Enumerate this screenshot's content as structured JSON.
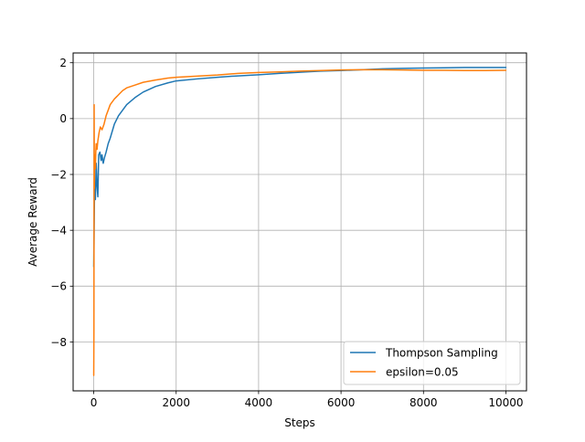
{
  "chart_data": {
    "type": "line",
    "title": "",
    "xlabel": "Steps",
    "ylabel": "Average Reward",
    "xlim": [
      -500,
      10500
    ],
    "ylim": [
      -9.75,
      2.35
    ],
    "xticks": [
      0,
      2000,
      4000,
      6000,
      8000,
      10000
    ],
    "xtick_labels": [
      "0",
      "2000",
      "4000",
      "6000",
      "8000",
      "10000"
    ],
    "yticks": [
      -8,
      -6,
      -4,
      -2,
      0,
      2
    ],
    "ytick_labels": [
      "−8",
      "−6",
      "−4",
      "−2",
      "0",
      "2"
    ],
    "grid": true,
    "legend_position": "bottom-right",
    "series": [
      {
        "name": "Thompson Sampling",
        "color": "#1f77b4",
        "x": [
          0,
          20,
          40,
          60,
          80,
          100,
          120,
          150,
          180,
          200,
          230,
          260,
          300,
          350,
          400,
          500,
          600,
          700,
          800,
          1000,
          1200,
          1500,
          1800,
          2000,
          2500,
          3000,
          3500,
          4000,
          4500,
          5000,
          5500,
          6000,
          6500,
          7000,
          7500,
          8000,
          8500,
          9000,
          9500,
          10000
        ],
        "y": [
          -5.3,
          -2.5,
          -2.9,
          -1.6,
          -2.4,
          -2.8,
          -1.3,
          -1.2,
          -1.5,
          -1.3,
          -1.6,
          -1.4,
          -1.2,
          -0.9,
          -0.7,
          -0.2,
          0.1,
          0.3,
          0.5,
          0.75,
          0.95,
          1.15,
          1.28,
          1.35,
          1.42,
          1.48,
          1.53,
          1.57,
          1.62,
          1.66,
          1.7,
          1.72,
          1.75,
          1.78,
          1.8,
          1.81,
          1.82,
          1.83,
          1.83,
          1.83
        ]
      },
      {
        "name": "epsilon=0.05",
        "color": "#ff7f0e",
        "x": [
          0,
          5,
          10,
          15,
          20,
          30,
          40,
          50,
          60,
          80,
          100,
          130,
          160,
          200,
          250,
          300,
          350,
          400,
          500,
          600,
          700,
          800,
          1000,
          1200,
          1500,
          1800,
          2000,
          2500,
          3000,
          3500,
          4000,
          4500,
          5000,
          5500,
          6000,
          6500,
          7000,
          7500,
          8000,
          8500,
          9000,
          9500,
          10000
        ],
        "y": [
          -9.2,
          -7.5,
          0.5,
          -2.5,
          -1.8,
          -1.3,
          -1.8,
          -1.2,
          -0.9,
          -1.1,
          -0.8,
          -0.5,
          -0.3,
          -0.4,
          -0.2,
          0.1,
          0.3,
          0.5,
          0.7,
          0.85,
          1.0,
          1.1,
          1.2,
          1.3,
          1.38,
          1.45,
          1.48,
          1.52,
          1.56,
          1.62,
          1.65,
          1.67,
          1.7,
          1.72,
          1.74,
          1.75,
          1.75,
          1.74,
          1.73,
          1.73,
          1.72,
          1.72,
          1.73
        ]
      }
    ]
  }
}
